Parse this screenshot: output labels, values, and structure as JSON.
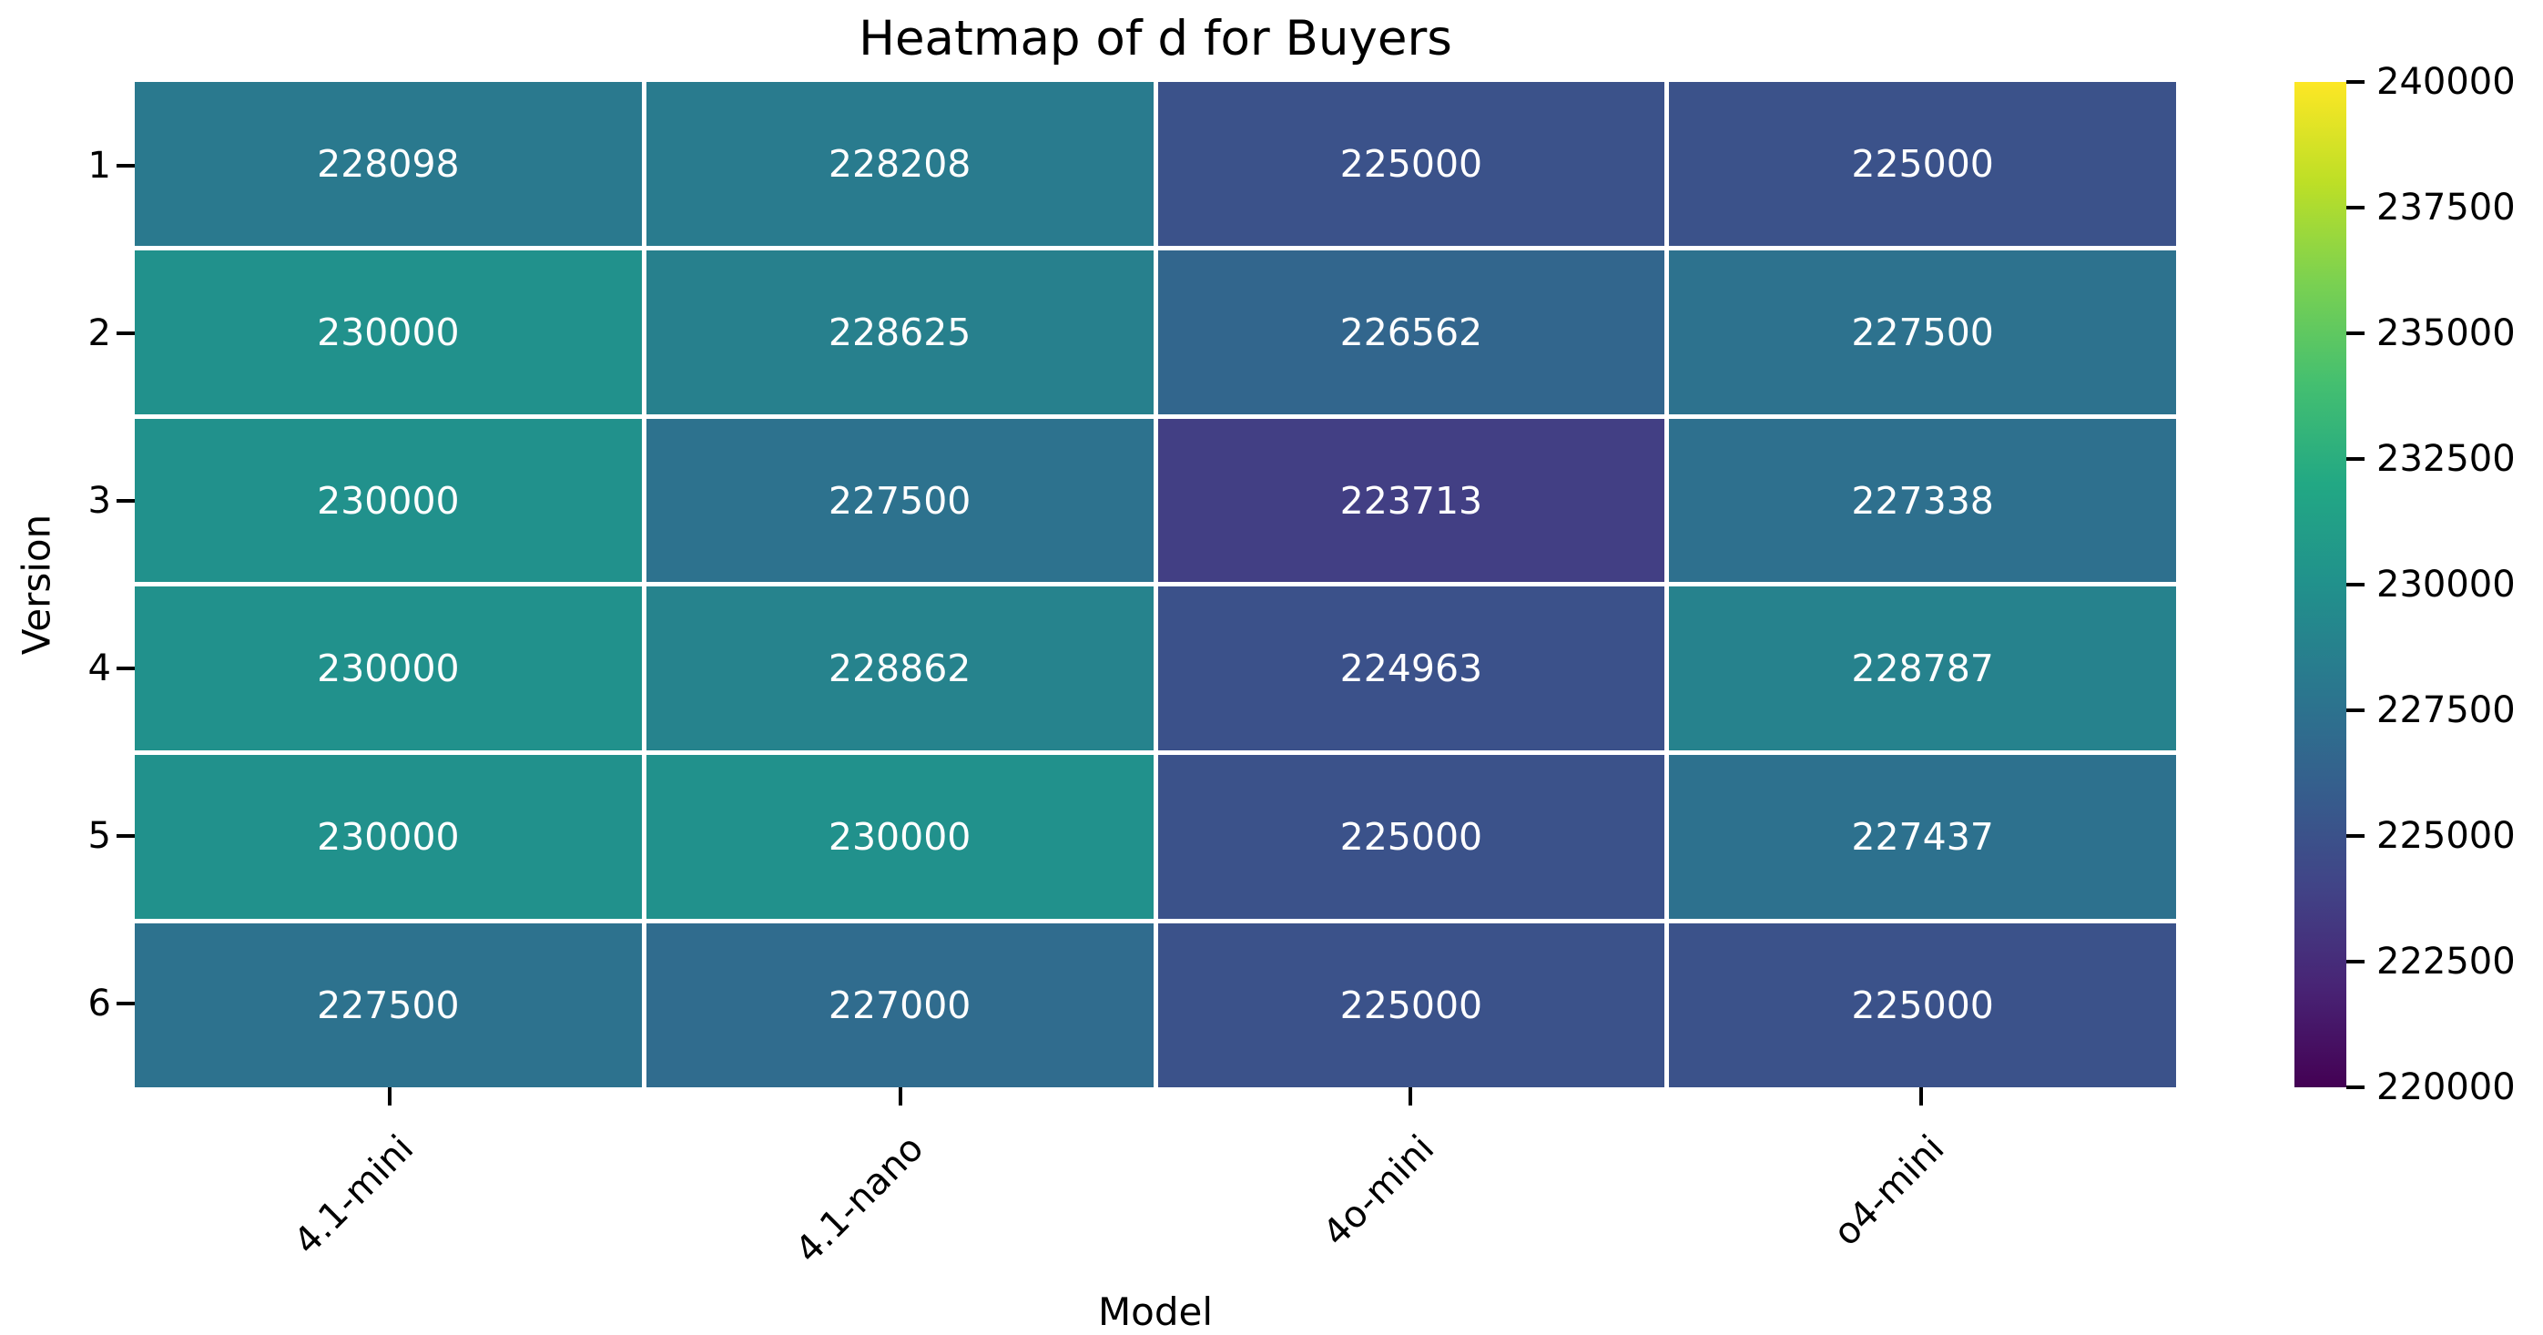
{
  "title": "Heatmap of d for Buyers",
  "chart_data": {
    "type": "heatmap",
    "title": "Heatmap of d for Buyers",
    "xlabel": "Model",
    "ylabel": "Version",
    "x_categories": [
      "4.1-mini",
      "4.1-nano",
      "4o-mini",
      "o4-mini"
    ],
    "y_categories": [
      "1",
      "2",
      "3",
      "4",
      "5",
      "6"
    ],
    "values": [
      [
        228098,
        228208,
        225000,
        225000
      ],
      [
        230000,
        228625,
        226562,
        227500
      ],
      [
        230000,
        227500,
        223713,
        227338
      ],
      [
        230000,
        228862,
        224963,
        228787
      ],
      [
        230000,
        230000,
        225000,
        227437
      ],
      [
        227500,
        227000,
        225000,
        225000
      ]
    ],
    "vmin": 220000,
    "vmax": 240000,
    "colorbar_ticks": [
      240000,
      237500,
      235000,
      232500,
      230000,
      227500,
      225000,
      222500,
      220000
    ],
    "annotation_color": "#ffffff",
    "grid_line_color": "#ffffff",
    "colormap": "viridis",
    "colormap_stops": [
      {
        "t": 0.0,
        "c": "#440154"
      },
      {
        "t": 0.1,
        "c": "#482475"
      },
      {
        "t": 0.2,
        "c": "#414487"
      },
      {
        "t": 0.3,
        "c": "#355f8d"
      },
      {
        "t": 0.4,
        "c": "#2a788e"
      },
      {
        "t": 0.5,
        "c": "#21918c"
      },
      {
        "t": 0.6,
        "c": "#22a884"
      },
      {
        "t": 0.7,
        "c": "#44bf70"
      },
      {
        "t": 0.8,
        "c": "#7ad151"
      },
      {
        "t": 0.9,
        "c": "#bddf26"
      },
      {
        "t": 1.0,
        "c": "#fde725"
      }
    ],
    "legend_position": "right-colorbar",
    "grid": false
  }
}
